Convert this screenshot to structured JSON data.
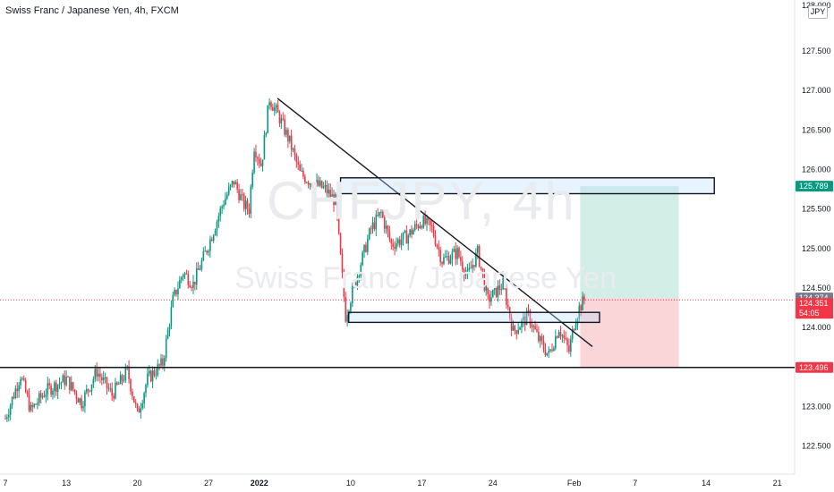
{
  "header": {
    "title": "Swiss Franc / Japanese Yen, 4h, FXCM"
  },
  "watermark": {
    "symbol": "CHFJPY, 4h",
    "name": "Swiss Franc / Japanese Yen"
  },
  "price_axis": {
    "currency": "JPY",
    "top_label": "128.000"
  },
  "chart_data": {
    "type": "candlestick",
    "symbol": "CHFJPY",
    "title": "Swiss Franc / Japanese Yen, 4h, FXCM",
    "ylim": [
      122.35,
      128.1
    ],
    "y_ticks": [
      "122.500",
      "123.000",
      "123.500",
      "124.000",
      "124.500",
      "125.000",
      "125.500",
      "126.000",
      "126.500",
      "127.000",
      "127.500"
    ],
    "x_ticks": [
      {
        "label": "7",
        "day": 7
      },
      {
        "label": "13",
        "day": 13
      },
      {
        "label": "20",
        "day": 20
      },
      {
        "label": "27",
        "day": 27
      },
      {
        "label": "2022",
        "day": 32
      },
      {
        "label": "10",
        "day": 41
      },
      {
        "label": "17",
        "day": 48
      },
      {
        "label": "24",
        "day": 55
      },
      {
        "label": "Feb",
        "day": 63
      },
      {
        "label": "7",
        "day": 69
      },
      {
        "label": "14",
        "day": 76
      },
      {
        "label": "21",
        "day": 83
      }
    ],
    "x_range_days": [
      7,
      84.4
    ],
    "price_path": [
      [
        7.0,
        122.85
      ],
      [
        8.5,
        123.4
      ],
      [
        9.5,
        122.95
      ],
      [
        11.0,
        123.2
      ],
      [
        13.0,
        123.35
      ],
      [
        14.5,
        123.05
      ],
      [
        16.0,
        123.45
      ],
      [
        17.5,
        123.15
      ],
      [
        19.0,
        123.45
      ],
      [
        20.0,
        122.9
      ],
      [
        21.0,
        123.35
      ],
      [
        22.5,
        123.55
      ],
      [
        23.5,
        124.35
      ],
      [
        24.5,
        124.7
      ],
      [
        25.5,
        124.55
      ],
      [
        27.0,
        125.05
      ],
      [
        28.5,
        125.6
      ],
      [
        29.5,
        125.85
      ],
      [
        30.5,
        125.55
      ],
      [
        31.0,
        125.5
      ],
      [
        31.5,
        126.3
      ],
      [
        32.2,
        126.05
      ],
      [
        33.0,
        126.9
      ],
      [
        34.0,
        126.65
      ],
      [
        35.0,
        126.35
      ],
      [
        36.0,
        125.95
      ],
      [
        37.0,
        125.85
      ],
      [
        38.5,
        125.75
      ],
      [
        39.5,
        125.6
      ],
      [
        40.5,
        124.15
      ],
      [
        41.5,
        124.6
      ],
      [
        43.0,
        125.25
      ],
      [
        44.0,
        125.45
      ],
      [
        45.0,
        125.05
      ],
      [
        46.5,
        125.15
      ],
      [
        48.0,
        125.35
      ],
      [
        49.0,
        125.25
      ],
      [
        50.0,
        124.85
      ],
      [
        51.5,
        124.95
      ],
      [
        52.5,
        124.65
      ],
      [
        53.5,
        124.95
      ],
      [
        54.5,
        124.35
      ],
      [
        56.0,
        124.55
      ],
      [
        57.0,
        123.95
      ],
      [
        58.5,
        124.15
      ],
      [
        59.5,
        123.85
      ],
      [
        60.5,
        123.65
      ],
      [
        61.5,
        124.0
      ],
      [
        62.5,
        123.7
      ],
      [
        63.0,
        124.05
      ],
      [
        63.5,
        124.25
      ],
      [
        64.1,
        124.37
      ]
    ],
    "last_day": 64.1,
    "price_labels": [
      {
        "value": "125.789",
        "price": 125.789,
        "color": "#089981"
      },
      {
        "value": "124.374",
        "price": 124.374,
        "color": "#787b86"
      },
      {
        "value": "124.351",
        "price": 124.351,
        "color": "#f23645"
      },
      {
        "value": "54:05",
        "price": 124.351,
        "color": "#f23645"
      },
      {
        "value": "123.496",
        "price": 123.496,
        "color": "#f23645"
      }
    ],
    "current_price": 124.351,
    "drawings": {
      "trendline": {
        "from": [
          33.8,
          126.9
        ],
        "to": [
          64.8,
          123.76
        ]
      },
      "support_line": {
        "price": 123.496
      },
      "resistance_zone": {
        "start_day": 40.0,
        "end_day": 76.8,
        "low": 125.74,
        "high": 125.85
      },
      "demand_zone": {
        "start_day": 40.8,
        "end_day": 65.5,
        "low": 124.1,
        "high": 124.17
      },
      "long_position": {
        "start_day": 63.6,
        "end_day": 73.3,
        "entry": 124.374,
        "target": 125.789,
        "stop": 123.496
      }
    },
    "colors": {
      "up": "#089981",
      "down": "#f23645",
      "target_fill": "#d3ede7",
      "stop_fill": "#fbd6d9"
    }
  }
}
